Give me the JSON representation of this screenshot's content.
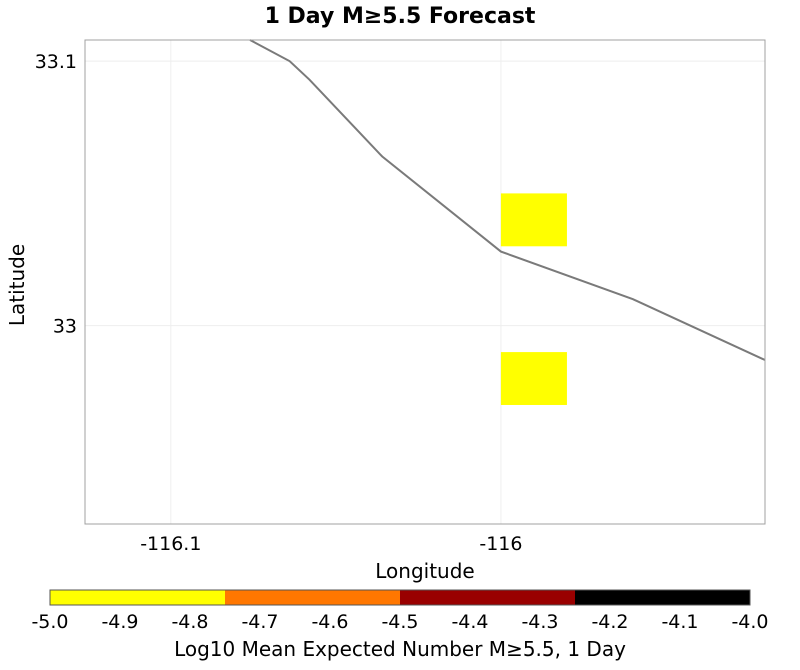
{
  "chart_data": {
    "type": "heatmap",
    "title": "1 Day M≥5.5 Forecast",
    "xlabel": "Longitude",
    "ylabel": "Latitude",
    "xlim": [
      -116.126,
      -115.92
    ],
    "ylim": [
      32.925,
      33.108
    ],
    "x_ticks": [
      -116.1,
      -116
    ],
    "x_tick_labels": [
      "-116.1",
      "-116"
    ],
    "y_ticks": [
      33,
      33.1
    ],
    "y_tick_labels": [
      "33",
      "33.1"
    ],
    "cells": [
      {
        "lon_min": -116.0,
        "lon_max": -115.98,
        "lat_min": 33.03,
        "lat_max": 33.05,
        "log10_value": -4.9
      },
      {
        "lon_min": -116.0,
        "lon_max": -115.98,
        "lat_min": 32.97,
        "lat_max": 32.99,
        "log10_value": -4.9
      }
    ],
    "fault_line": [
      [
        -116.076,
        33.108
      ],
      [
        -116.064,
        33.1
      ],
      [
        -116.058,
        33.093
      ],
      [
        -116.036,
        33.064
      ],
      [
        -116.006,
        33.034
      ],
      [
        -116.0,
        33.028
      ],
      [
        -115.96,
        33.01
      ],
      [
        -115.92,
        32.987
      ]
    ],
    "colorbar": {
      "label": "Log10 Mean Expected Number M≥5.5, 1 Day",
      "min": -5.0,
      "max": -4.0,
      "tick_values": [
        -5.0,
        -4.9,
        -4.8,
        -4.7,
        -4.6,
        -4.5,
        -4.4,
        -4.3,
        -4.2,
        -4.1,
        -4.0
      ],
      "tick_labels": [
        "-5.0",
        "-4.9",
        "-4.8",
        "-4.7",
        "-4.6",
        "-4.5",
        "-4.4",
        "-4.3",
        "-4.2",
        "-4.1",
        "-4.0"
      ],
      "segments": [
        {
          "from": -5.0,
          "to": -4.75,
          "color": "#ffff00"
        },
        {
          "from": -4.75,
          "to": -4.5,
          "color": "#ff7700"
        },
        {
          "from": -4.5,
          "to": -4.25,
          "color": "#990000"
        },
        {
          "from": -4.25,
          "to": -4.0,
          "color": "#000000"
        }
      ]
    },
    "colors": {
      "fault": "#7a7a7a",
      "frame": "#a0a0a0",
      "grid": "#eeeeee"
    }
  }
}
